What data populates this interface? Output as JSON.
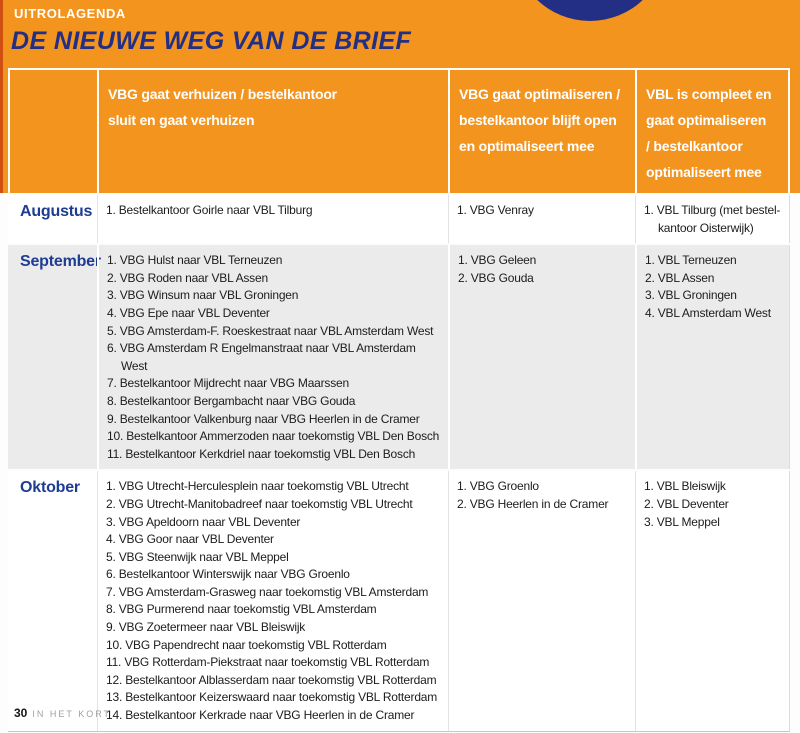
{
  "colors": {
    "accent_orange": "#F2941E",
    "brand_blue": "#232E85",
    "month_blue": "#1D3C92",
    "shaded_row": "#EBEBEB"
  },
  "header": {
    "kicker": "UITROLAGENDA",
    "title": "DE NIEUWE WEG VAN DE BRIEF"
  },
  "table": {
    "columns": [
      "",
      "VBG gaat verhuizen / bestelkantoor\nsluit en gaat verhuizen",
      "VBG gaat optimaliseren /\nbestelkantoor blijft open\nen optimaliseert mee",
      "VBL is compleet en\ngaat optimaliseren\n/ bestelkantoor\noptimaliseert mee"
    ],
    "rows": [
      {
        "month": "Augustus",
        "shaded": false,
        "col2": [
          "1. Bestelkantoor Goirle naar VBL Tilburg"
        ],
        "col3": [
          "1. VBG Venray"
        ],
        "col4": [
          "1. VBL Tilburg (met bestel-\nkantoor Oisterwijk)"
        ]
      },
      {
        "month": "September",
        "shaded": true,
        "col2": [
          "1. VBG Hulst naar VBL Terneuzen",
          "2. VBG Roden naar VBL Assen",
          "3. VBG Winsum naar VBL Groningen",
          "4. VBG Epe naar VBL Deventer",
          "5. VBG Amsterdam-F. Roeskestraat naar VBL Amsterdam West",
          "6. VBG Amsterdam R Engelmanstraat naar VBL Amsterdam West",
          "7. Bestelkantoor Mijdrecht naar VBG Maarssen",
          "8. Bestelkantoor Bergambacht naar VBG Gouda",
          "9. Bestelkantoor Valkenburg naar VBG Heerlen in de Cramer",
          "10. Bestelkantoor Ammerzoden naar toekomstig VBL Den Bosch",
          "11. Bestelkantoor Kerkdriel naar toekomstig VBL Den Bosch"
        ],
        "col3": [
          "1. VBG Geleen",
          "2. VBG Gouda"
        ],
        "col4": [
          "1. VBL Terneuzen",
          "2. VBL Assen",
          "3. VBL Groningen",
          "4. VBL Amsterdam West"
        ]
      },
      {
        "month": "Oktober",
        "shaded": false,
        "col2": [
          "1. VBG Utrecht-Herculesplein naar toekomstig VBL Utrecht",
          "2. VBG Utrecht-Manitobadreef naar toekomstig VBL Utrecht",
          "3. VBG Apeldoorn naar VBL Deventer",
          "4. VBG Goor naar VBL Deventer",
          "5. VBG Steenwijk naar VBL Meppel",
          "6. Bestelkantoor Winterswijk naar VBG Groenlo",
          "7. VBG Amsterdam-Grasweg naar toekomstig VBL Amsterdam",
          "8. VBG Purmerend naar toekomstig VBL Amsterdam",
          "9. VBG Zoetermeer naar VBL Bleiswijk",
          "10. VBG Papendrecht naar toekomstig VBL Rotterdam",
          "11. VBG Rotterdam-Piekstraat naar toekomstig VBL Rotterdam",
          "12. Bestelkantoor Alblasserdam naar toekomstig VBL Rotterdam",
          "13. Bestelkantoor Keizerswaard naar toekomstig VBL Rotterdam",
          "14. Bestelkantoor Kerkrade naar VBG Heerlen in de Cramer"
        ],
        "col3": [
          "1. VBG Groenlo",
          "2. VBG Heerlen in de Cramer"
        ],
        "col4": [
          "1. VBL Bleiswijk",
          "2. VBL Deventer",
          "3. VBL Meppel"
        ]
      }
    ]
  },
  "footer": {
    "page_number": "30",
    "section": "IN HET KORT"
  }
}
